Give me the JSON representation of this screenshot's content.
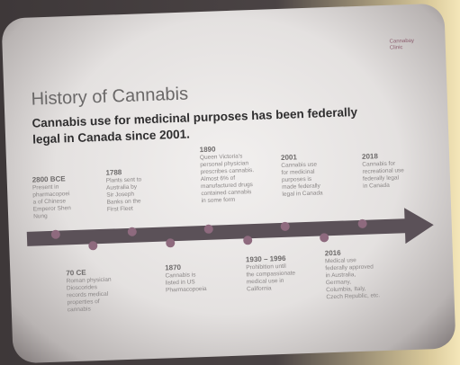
{
  "slide": {
    "logo": "Cannabay Clinic",
    "title": "History of Cannabis",
    "subtitle": [
      "Cannabis use for medicinal purposes has been federally",
      "legal in Canada since 2001."
    ],
    "events_above": [
      {
        "date": "2800 BCE",
        "lines": [
          "Present in",
          "pharmacopoei",
          "a of Chinese",
          "Emperor Shen",
          "Nung"
        ]
      },
      {
        "date": "1788",
        "lines": [
          "Plants sent to",
          "Australia by",
          "Sir Joseph",
          "Banks on the",
          "First Fleet"
        ]
      },
      {
        "date": "1890",
        "lines": [
          "Queen Victoria's",
          "personal physician",
          "prescribes cannabis.",
          "Almost 6% of",
          "manufactured drugs",
          "contained cannabis",
          "in some form"
        ]
      },
      {
        "date": "2001",
        "lines": [
          "Cannabis use",
          "for medicinal",
          "purposes is",
          "made federally",
          "legal in Canada"
        ]
      },
      {
        "date": "2018",
        "lines": [
          "Cannabis for",
          "recreational use",
          "federally legal",
          "in Canada"
        ]
      }
    ],
    "events_below": [
      {
        "date": "70 CE",
        "lines": [
          "Roman physician",
          "Dioscorides",
          "records medical",
          "properties of",
          "cannabis"
        ]
      },
      {
        "date": "1870",
        "lines": [
          "Cannabis is",
          "listed in US",
          "Pharmacopoeia"
        ]
      },
      {
        "date": "1930 – 1996",
        "lines": [
          "Prohibition until",
          "the compassionate",
          "medical use in",
          "California"
        ]
      },
      {
        "date": "2016",
        "lines": [
          "Medical use",
          "federally approved",
          "in Australia,",
          "Germany,",
          "Columbia, Italy,",
          "Czech Republic, etc."
        ]
      }
    ]
  }
}
